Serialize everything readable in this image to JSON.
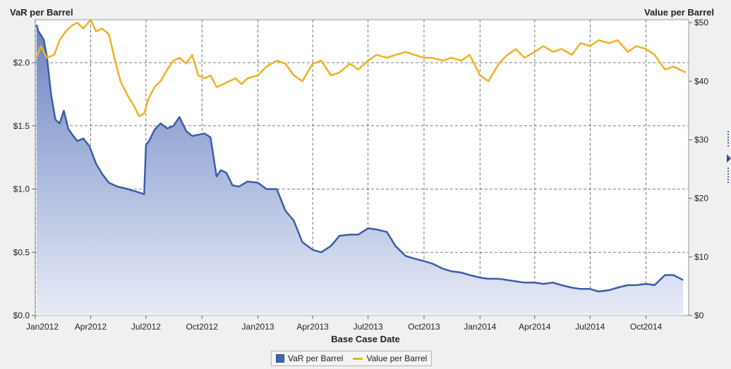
{
  "chart_data": {
    "type": "area",
    "x_axis": {
      "label": "Base Case Date",
      "ticks": [
        "Jan2012",
        "Apr2012",
        "Jul2012",
        "Oct2012",
        "Jan2013",
        "Apr2013",
        "Jul2013",
        "Oct2013",
        "Jan2014",
        "Apr2014",
        "Jul2014",
        "Oct2014"
      ],
      "range": [
        "2012-01-01",
        "2014-12-10"
      ]
    },
    "y_axis_left": {
      "label": "VaR per Barrel",
      "ticks": [
        "$0.0",
        "$0.5",
        "$1.0",
        "$1.5",
        "$2.0"
      ],
      "range": [
        0,
        2.34
      ]
    },
    "y_axis_right": {
      "label": "Value per Barrel",
      "ticks": [
        "$0",
        "$10",
        "$20",
        "$30",
        "$40",
        "$50"
      ],
      "range": [
        0,
        50.5
      ]
    },
    "grid": true,
    "legend": {
      "placement": "bottom"
    },
    "series": [
      {
        "name": "VaR per Barrel",
        "kind": "area",
        "axis": "left",
        "color": "#3d5ca8",
        "x": [
          "2012-01-03",
          "2012-01-06",
          "2012-01-10",
          "2012-01-15",
          "2012-01-20",
          "2012-01-27",
          "2012-02-03",
          "2012-02-10",
          "2012-02-17",
          "2012-02-24",
          "2012-03-02",
          "2012-03-10",
          "2012-03-20",
          "2012-03-30",
          "2012-04-10",
          "2012-04-20",
          "2012-05-01",
          "2012-05-15",
          "2012-06-01",
          "2012-06-15",
          "2012-06-28",
          "2012-07-01",
          "2012-07-06",
          "2012-07-15",
          "2012-07-25",
          "2012-08-05",
          "2012-08-15",
          "2012-08-25",
          "2012-09-05",
          "2012-09-15",
          "2012-09-25",
          "2012-10-05",
          "2012-10-15",
          "2012-10-25",
          "2012-11-01",
          "2012-11-10",
          "2012-11-20",
          "2012-12-01",
          "2012-12-15",
          "2013-01-01",
          "2013-01-15",
          "2013-02-01",
          "2013-02-15",
          "2013-03-01",
          "2013-03-15",
          "2013-04-01",
          "2013-04-15",
          "2013-05-01",
          "2013-05-15",
          "2013-06-01",
          "2013-06-15",
          "2013-07-01",
          "2013-07-15",
          "2013-08-01",
          "2013-08-15",
          "2013-09-01",
          "2013-09-15",
          "2013-10-01",
          "2013-10-15",
          "2013-11-01",
          "2013-11-15",
          "2013-12-01",
          "2013-12-15",
          "2014-01-01",
          "2014-01-15",
          "2014-02-01",
          "2014-02-15",
          "2014-03-01",
          "2014-03-15",
          "2014-04-01",
          "2014-04-15",
          "2014-05-01",
          "2014-05-15",
          "2014-06-01",
          "2014-06-15",
          "2014-07-01",
          "2014-07-15",
          "2014-08-01",
          "2014-08-15",
          "2014-09-01",
          "2014-09-15",
          "2014-10-01",
          "2014-10-15",
          "2014-11-01",
          "2014-11-15",
          "2014-12-01"
        ],
        "values": [
          2.3,
          2.25,
          2.22,
          2.18,
          2.05,
          1.75,
          1.55,
          1.52,
          1.62,
          1.48,
          1.43,
          1.38,
          1.4,
          1.34,
          1.2,
          1.12,
          1.05,
          1.02,
          1.0,
          0.98,
          0.96,
          1.35,
          1.38,
          1.47,
          1.52,
          1.48,
          1.5,
          1.57,
          1.46,
          1.42,
          1.43,
          1.44,
          1.41,
          1.1,
          1.15,
          1.13,
          1.03,
          1.02,
          1.06,
          1.05,
          1.0,
          1.0,
          0.83,
          0.75,
          0.58,
          0.52,
          0.5,
          0.55,
          0.63,
          0.64,
          0.64,
          0.69,
          0.68,
          0.66,
          0.55,
          0.47,
          0.45,
          0.43,
          0.41,
          0.37,
          0.35,
          0.34,
          0.32,
          0.3,
          0.29,
          0.29,
          0.28,
          0.27,
          0.26,
          0.26,
          0.25,
          0.26,
          0.24,
          0.22,
          0.21,
          0.21,
          0.19,
          0.2,
          0.22,
          0.24,
          0.24,
          0.25,
          0.24,
          0.32,
          0.32,
          0.28
        ]
      },
      {
        "name": "Value per Barrel",
        "kind": "line",
        "axis": "right",
        "color": "#f2b022",
        "x": [
          "2012-01-03",
          "2012-01-10",
          "2012-01-20",
          "2012-02-01",
          "2012-02-10",
          "2012-02-20",
          "2012-03-01",
          "2012-03-10",
          "2012-03-20",
          "2012-04-01",
          "2012-04-10",
          "2012-04-20",
          "2012-05-01",
          "2012-05-10",
          "2012-05-20",
          "2012-06-01",
          "2012-06-10",
          "2012-06-20",
          "2012-06-28",
          "2012-07-05",
          "2012-07-15",
          "2012-07-25",
          "2012-08-05",
          "2012-08-15",
          "2012-08-25",
          "2012-09-05",
          "2012-09-15",
          "2012-09-25",
          "2012-10-05",
          "2012-10-15",
          "2012-10-25",
          "2012-11-05",
          "2012-11-15",
          "2012-11-25",
          "2012-12-05",
          "2012-12-15",
          "2013-01-01",
          "2013-01-15",
          "2013-02-01",
          "2013-02-15",
          "2013-03-01",
          "2013-03-15",
          "2013-04-01",
          "2013-04-15",
          "2013-05-01",
          "2013-05-15",
          "2013-06-01",
          "2013-06-15",
          "2013-07-01",
          "2013-07-15",
          "2013-08-01",
          "2013-08-15",
          "2013-09-01",
          "2013-09-15",
          "2013-10-01",
          "2013-10-15",
          "2013-11-01",
          "2013-11-15",
          "2013-12-01",
          "2013-12-15",
          "2014-01-01",
          "2014-01-15",
          "2014-02-01",
          "2014-02-15",
          "2014-03-01",
          "2014-03-15",
          "2014-04-01",
          "2014-04-15",
          "2014-05-01",
          "2014-05-15",
          "2014-06-01",
          "2014-06-15",
          "2014-07-01",
          "2014-07-15",
          "2014-08-01",
          "2014-08-15",
          "2014-09-01",
          "2014-09-15",
          "2014-10-01",
          "2014-10-15",
          "2014-11-01",
          "2014-11-15",
          "2014-12-05"
        ],
        "values": [
          44.0,
          46.0,
          44.0,
          44.5,
          47.0,
          48.5,
          49.5,
          50.0,
          49.0,
          50.5,
          48.5,
          49.0,
          48.0,
          44.0,
          40.0,
          37.5,
          36.0,
          34.0,
          34.5,
          37.0,
          39.0,
          40.0,
          42.0,
          43.5,
          44.0,
          43.0,
          44.5,
          41.0,
          40.5,
          41.0,
          39.0,
          39.5,
          40.0,
          40.5,
          39.5,
          40.5,
          41.0,
          42.5,
          43.5,
          43.0,
          41.0,
          40.0,
          43.0,
          43.5,
          41.0,
          41.5,
          43.0,
          42.0,
          43.5,
          44.5,
          44.0,
          44.5,
          45.0,
          44.5,
          44.0,
          44.0,
          43.5,
          44.0,
          43.5,
          44.5,
          41.0,
          40.0,
          43.0,
          44.5,
          45.5,
          44.0,
          45.0,
          46.0,
          45.0,
          45.5,
          44.5,
          46.5,
          46.0,
          47.0,
          46.5,
          47.0,
          45.0,
          46.0,
          45.5,
          44.5,
          42.0,
          42.5,
          41.5
        ]
      }
    ]
  }
}
